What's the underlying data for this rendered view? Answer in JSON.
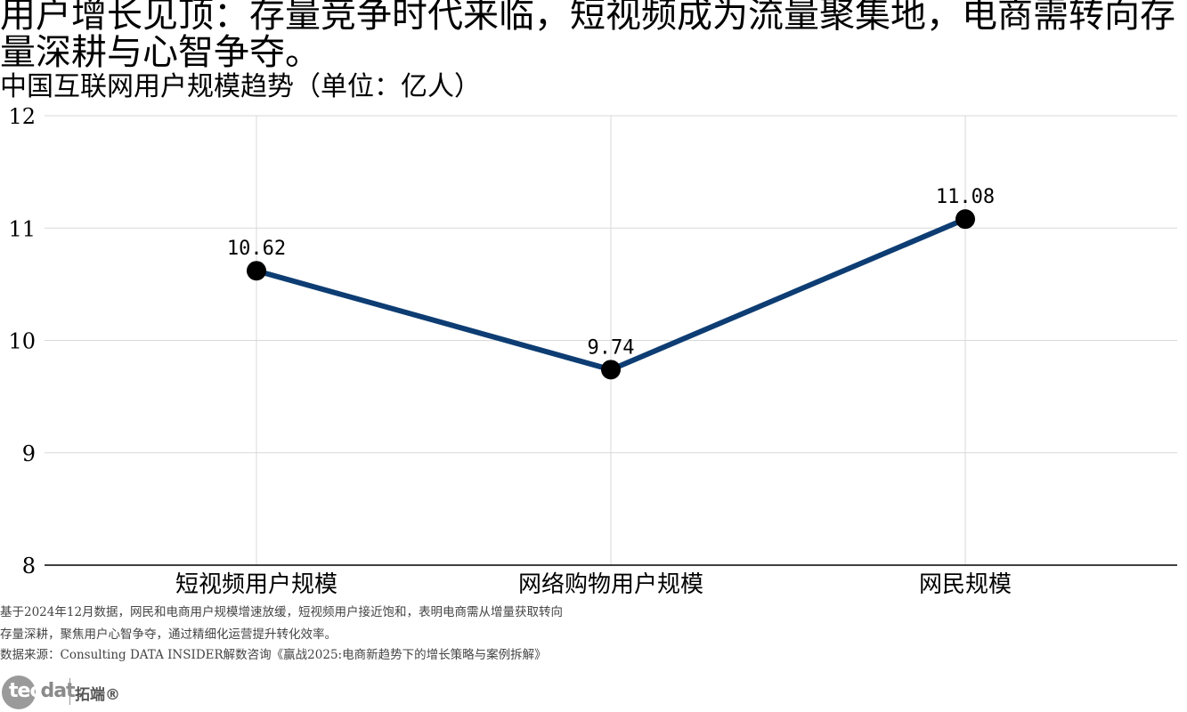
{
  "headline": "用户增长见顶：存量竞争时代来临，短视频成为流量聚集地，电商需转向存量深耕与心智争夺。",
  "chart_data": {
    "type": "line",
    "title": "中国互联网用户规模趋势（单位：亿人）",
    "categories": [
      "短视频用户规模",
      "网络购物用户规模",
      "网民规模"
    ],
    "series": [
      {
        "values": [
          10.62,
          9.74,
          11.08
        ]
      }
    ],
    "data_labels": [
      "10.62",
      "9.74",
      "11.08"
    ],
    "ylim": [
      8,
      12
    ],
    "yticks": [
      8,
      9,
      10,
      11,
      12
    ],
    "ytick_labels": [
      "8",
      "9",
      "10",
      "11",
      "12"
    ],
    "xlabel": "",
    "ylabel": "",
    "grid": true,
    "line_color": "#0d3d73",
    "marker_color": "#000000",
    "grid_color": "#d9d9d9",
    "axis_color": "#000000"
  },
  "footnotes": {
    "line1": "基于2024年12月数据，网民和电商用户规模增速放缓，短视频用户接近饱和，表明电商需从增量获取转向",
    "line2": "存量深耕，聚焦用户心智争夺，通过精细化运营提升转化效率。",
    "source": "数据来源：Consulting DATA INSIDER解数咨询《赢战2025:电商新趋势下的增长策略与案例拆解》"
  },
  "logo": {
    "brand_left": "tec",
    "brand_right": "dat",
    "brand_cn": "拓端®"
  }
}
